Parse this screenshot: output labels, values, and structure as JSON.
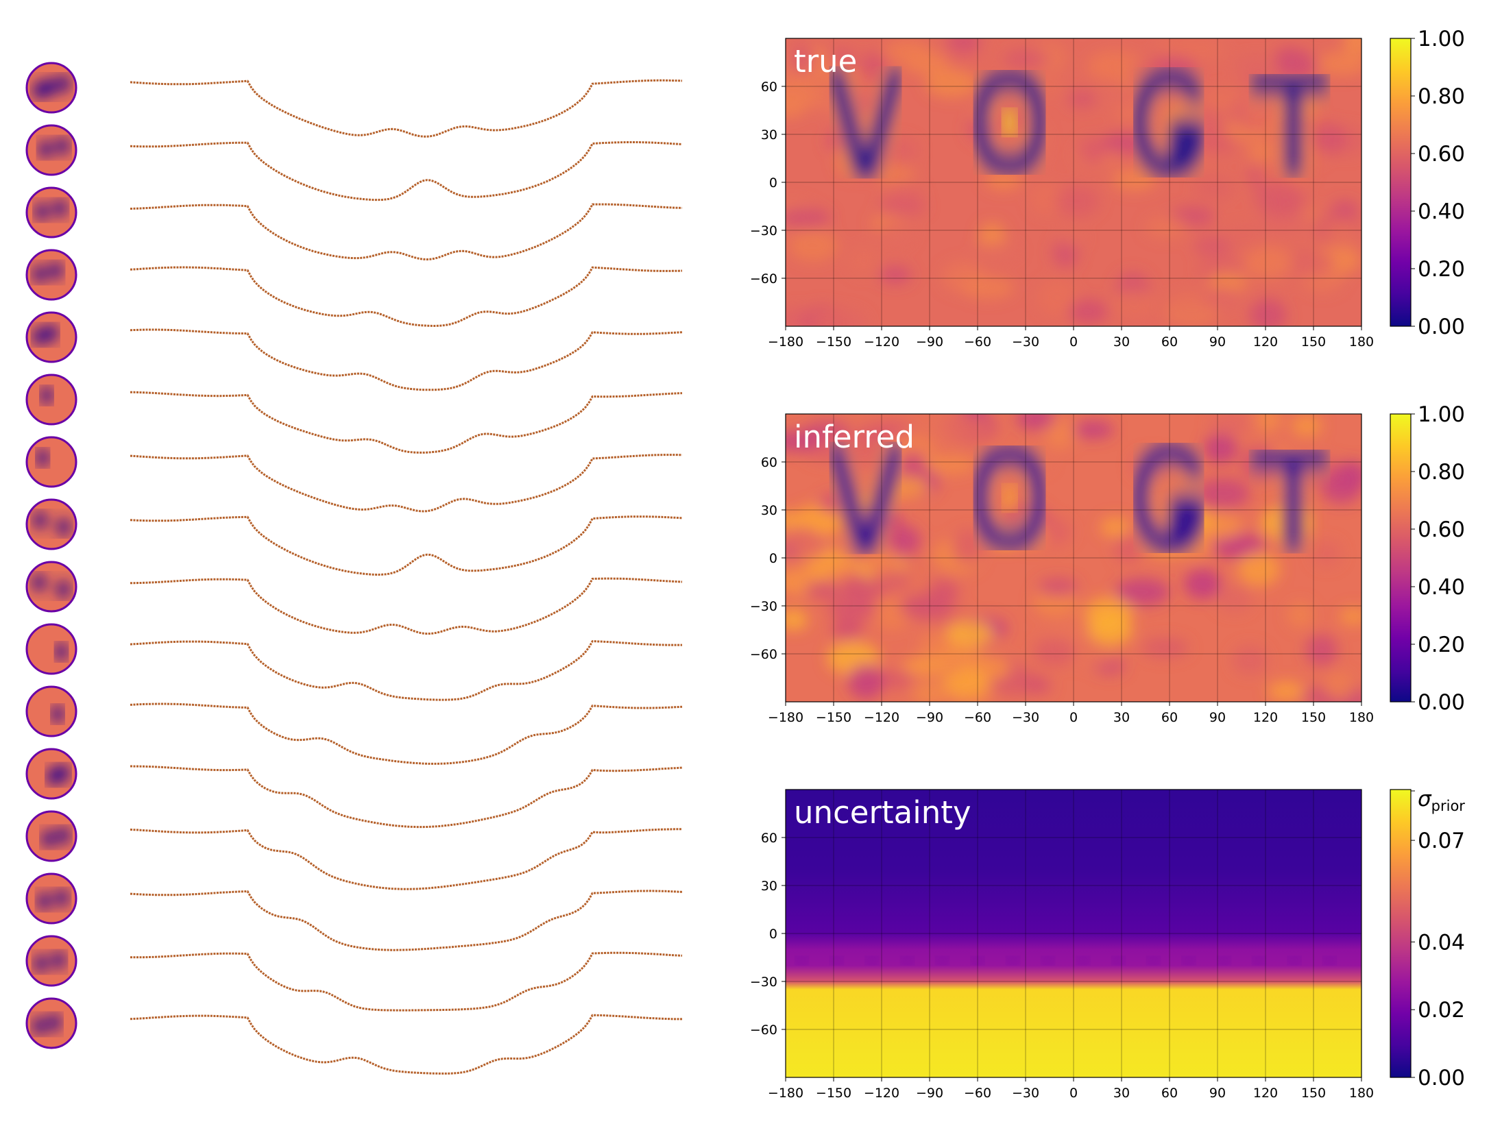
{
  "colormap_stops": [
    "#0d0887",
    "#46039f",
    "#7201a8",
    "#9c179e",
    "#bd3786",
    "#d8576b",
    "#ed7953",
    "#fb9f3a",
    "#fdca26",
    "#f0f921"
  ],
  "line_color": "#b5602a",
  "letters": [
    "V",
    "O",
    "G",
    "T"
  ],
  "left_column": {
    "num_phases": 16,
    "velocity_range": [
      -1,
      1
    ]
  },
  "chart_data": [
    {
      "type": "heatmap",
      "label": "true",
      "xlim": [
        -180,
        180
      ],
      "ylim": [
        -90,
        90
      ],
      "xticks": [
        "−180",
        "−150",
        "−120",
        "−90",
        "−60",
        "−30",
        "0",
        "30",
        "60",
        "90",
        "120",
        "150",
        "180"
      ],
      "yticks": [
        "60",
        "30",
        "0",
        "−30",
        "−60"
      ],
      "grid": true,
      "colorbar": {
        "min": 0,
        "max": 1,
        "ticks": [
          "1.00",
          "0.80",
          "0.60",
          "0.40",
          "0.20",
          "0.00"
        ]
      },
      "background_value": 0.62,
      "letter_value": 0.02,
      "letter_band_lat": [
        5,
        70
      ],
      "letter_centers_lon": [
        -130,
        -40,
        60,
        135
      ]
    },
    {
      "type": "heatmap",
      "label": "inferred",
      "xlim": [
        -180,
        180
      ],
      "ylim": [
        -90,
        90
      ],
      "xticks": [
        "−180",
        "−150",
        "−120",
        "−90",
        "−60",
        "−30",
        "0",
        "30",
        "60",
        "90",
        "120",
        "150",
        "180"
      ],
      "yticks": [
        "60",
        "30",
        "0",
        "−30",
        "−60"
      ],
      "grid": true,
      "colorbar": {
        "min": 0,
        "max": 1,
        "ticks": [
          "1.00",
          "0.80",
          "0.60",
          "0.40",
          "0.20",
          "0.00"
        ]
      },
      "background_value": 0.64,
      "letter_value": 0.05,
      "letter_band_lat": [
        5,
        70
      ],
      "letter_centers_lon": [
        -130,
        -40,
        60,
        135
      ]
    },
    {
      "type": "heatmap",
      "label": "uncertainty",
      "xlim": [
        -180,
        180
      ],
      "ylim": [
        -90,
        90
      ],
      "xticks": [
        "−180",
        "−150",
        "−120",
        "−90",
        "−60",
        "−30",
        "0",
        "30",
        "60",
        "90",
        "120",
        "150",
        "180"
      ],
      "yticks": [
        "60",
        "30",
        "0",
        "−30",
        "−60"
      ],
      "grid": true,
      "colorbar": {
        "min": 0,
        "max": 0.085,
        "ticks_top_label": "σ",
        "ticks_top_sub": "prior",
        "ticks": [
          "0.07",
          "0.04",
          "0.02",
          "0.00"
        ]
      },
      "lat_profile": [
        {
          "lat": 90,
          "value": 0.07
        },
        {
          "lat": 40,
          "value": 0.09
        },
        {
          "lat": 0,
          "value": 0.16
        },
        {
          "lat": -10,
          "value": 0.3
        },
        {
          "lat": -20,
          "value": 0.32
        },
        {
          "lat": -30,
          "value": 0.55
        },
        {
          "lat": -35,
          "value": 0.92
        },
        {
          "lat": -90,
          "value": 0.96
        }
      ]
    }
  ]
}
